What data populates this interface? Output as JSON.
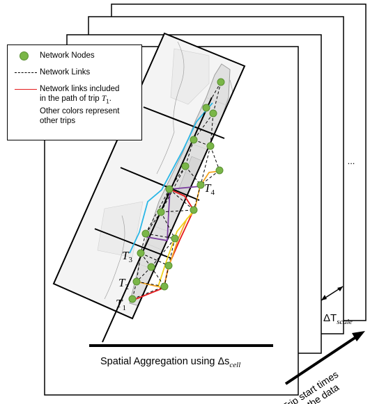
{
  "legend": {
    "nodes_label": "Network Nodes",
    "links_label": "Network Links",
    "path_line1": "Network links included",
    "path_line2_prefix": "in the path of trip ",
    "path_line2_var": "T",
    "path_line2_sub": "1",
    "path_line2_suffix": ".",
    "path_line3": "Other colors represent",
    "path_line4": "other trips"
  },
  "trip_labels": {
    "t1": {
      "base": "T",
      "sub": "1"
    },
    "t2": {
      "base": "T",
      "sub": "2"
    },
    "t3": {
      "base": "T",
      "sub": "3"
    },
    "t4": {
      "base": "T",
      "sub": "4"
    }
  },
  "ellipsis": "...",
  "delta_t": {
    "symbol": "ΔT",
    "sub": "scale"
  },
  "spatial_caption": {
    "text": "Spatial Aggregation using Δs",
    "sub": "cell"
  },
  "time_axis": {
    "line1": "Trip start times",
    "line2": "in the data"
  },
  "colors": {
    "node_fill": "#7ab648",
    "node_stroke": "#5a8f33",
    "trip1_path": "#e41a1c",
    "trip_cyan": "#29b6e6",
    "trip_orange": "#f5a623",
    "trip_yellow": "#f2d21b",
    "trip_purple": "#7b3f9e",
    "map_land": "#e2e2e2",
    "map_water": "#ffffff"
  }
}
